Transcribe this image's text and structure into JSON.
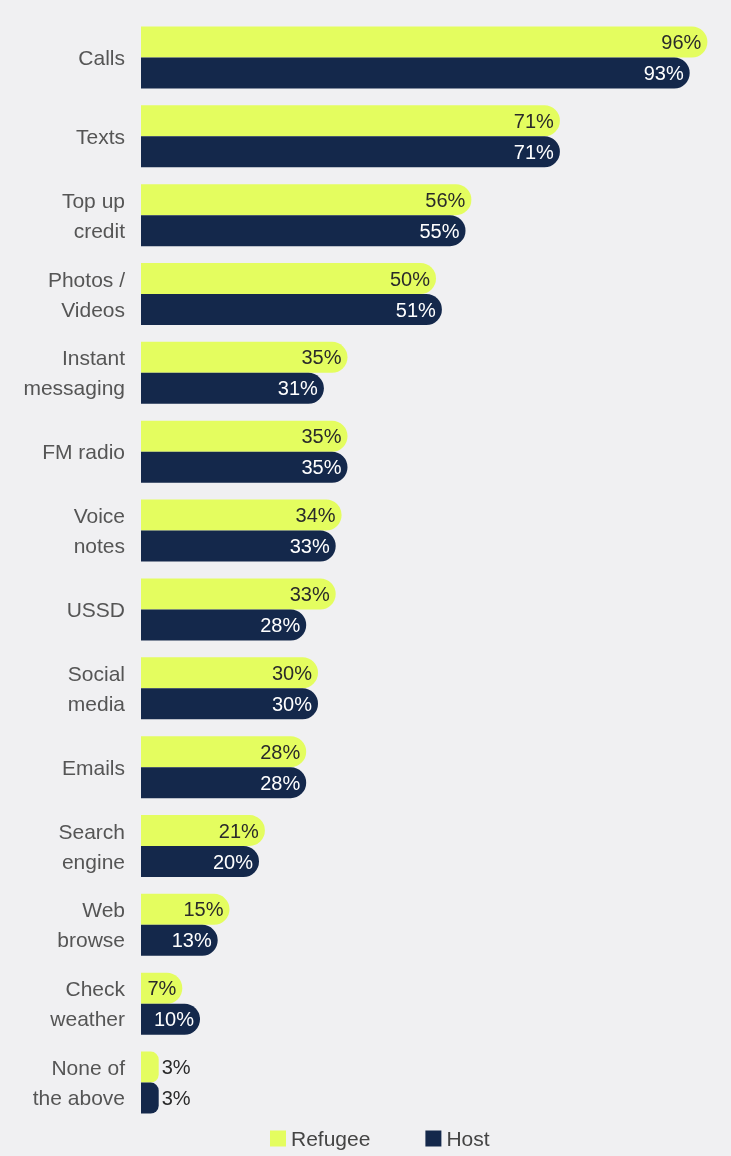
{
  "chart_data": {
    "type": "bar",
    "orientation": "horizontal",
    "categories": [
      "Calls",
      "Texts",
      "Top up\ncredit",
      "Photos /\nVideos",
      "Instant\nmessaging",
      "FM radio",
      "Voice\nnotes",
      "USSD",
      "Social\nmedia",
      "Emails",
      "Search\nengine",
      "Web\nbrowse",
      "Check\nweather",
      "None of\nthe above"
    ],
    "series": [
      {
        "name": "Refugee",
        "color": "#e4fd5f",
        "values": [
          96,
          71,
          56,
          50,
          35,
          35,
          34,
          33,
          30,
          28,
          21,
          15,
          7,
          3
        ],
        "value_labels": [
          "96%",
          "71%",
          "56%",
          "50%",
          "35%",
          "35%",
          "34%",
          "33%",
          "30%",
          "28%",
          "21%",
          "15%",
          "7%",
          "3%"
        ]
      },
      {
        "name": "Host",
        "color": "#14284b",
        "values": [
          93,
          71,
          55,
          51,
          31,
          35,
          33,
          28,
          30,
          28,
          20,
          13,
          10,
          3
        ],
        "value_labels": [
          "93%",
          "71%",
          "55%",
          "51%",
          "31%",
          "35%",
          "33%",
          "28%",
          "30%",
          "28%",
          "20%",
          "13%",
          "10%",
          "3%"
        ]
      }
    ],
    "tick_labels": "y",
    "legend": "bottom"
  }
}
